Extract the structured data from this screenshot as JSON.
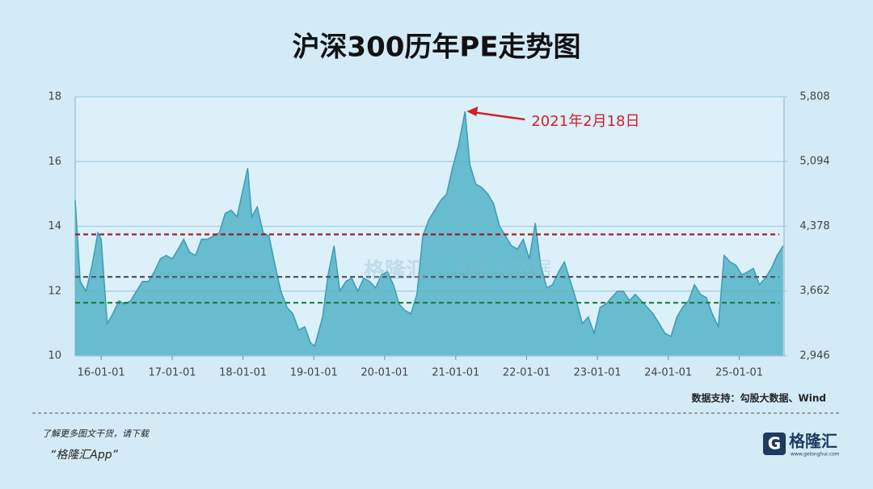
{
  "chart_data": {
    "type": "area",
    "title": "沪深300历年PE走势图",
    "x": [
      "15-08-20",
      "15-09-15",
      "15-10-15",
      "15-11-15",
      "15-12-15",
      "16-01-01",
      "16-02-01",
      "16-03-01",
      "16-04-01",
      "16-05-01",
      "16-06-01",
      "16-07-01",
      "16-08-01",
      "16-09-01",
      "16-10-01",
      "16-11-01",
      "16-12-01",
      "17-01-01",
      "17-02-01",
      "17-03-01",
      "17-04-01",
      "17-05-01",
      "17-06-01",
      "17-07-01",
      "17-08-01",
      "17-09-01",
      "17-10-01",
      "17-11-01",
      "17-12-01",
      "18-01-25",
      "18-02-15",
      "18-03-15",
      "18-04-15",
      "18-05-15",
      "18-06-15",
      "18-07-15",
      "18-08-15",
      "18-09-15",
      "18-10-15",
      "18-11-15",
      "18-12-15",
      "19-01-05",
      "19-02-15",
      "19-03-15",
      "19-04-15",
      "19-05-15",
      "19-06-15",
      "19-07-15",
      "19-08-15",
      "19-09-15",
      "19-10-15",
      "19-11-15",
      "19-12-15",
      "20-01-15",
      "20-02-15",
      "20-03-15",
      "20-04-15",
      "20-05-15",
      "20-06-15",
      "20-07-15",
      "20-08-15",
      "20-09-15",
      "20-10-15",
      "20-11-15",
      "20-12-15",
      "21-01-15",
      "21-02-18",
      "21-03-15",
      "21-04-15",
      "21-05-15",
      "21-06-15",
      "21-07-15",
      "21-08-15",
      "21-09-15",
      "21-10-15",
      "21-11-15",
      "21-12-15",
      "22-01-15",
      "22-02-15",
      "22-03-15",
      "22-04-15",
      "22-05-15",
      "22-06-15",
      "22-07-15",
      "22-08-15",
      "22-09-15",
      "22-10-15",
      "22-11-15",
      "22-12-15",
      "23-01-15",
      "23-02-15",
      "23-03-15",
      "23-04-15",
      "23-05-15",
      "23-06-15",
      "23-07-15",
      "23-08-15",
      "23-09-15",
      "23-10-15",
      "23-11-15",
      "23-12-15",
      "24-01-15",
      "24-02-15",
      "24-03-15",
      "24-04-15",
      "24-05-15",
      "24-06-15",
      "24-07-15",
      "24-08-15",
      "24-09-15",
      "24-10-15",
      "24-11-15",
      "24-12-15",
      "25-01-15",
      "25-02-15",
      "25-03-15",
      "25-04-15",
      "25-05-15",
      "25-06-15",
      "25-07-15",
      "25-08-15"
    ],
    "values": [
      14.8,
      12.3,
      12.0,
      12.8,
      13.8,
      13.6,
      11.0,
      11.3,
      11.7,
      11.6,
      11.7,
      12.0,
      12.3,
      12.3,
      12.6,
      13.0,
      13.1,
      13.0,
      13.3,
      13.6,
      13.2,
      13.1,
      13.6,
      13.6,
      13.7,
      13.8,
      14.4,
      14.5,
      14.3,
      15.8,
      14.3,
      14.6,
      13.8,
      13.7,
      12.8,
      12.0,
      11.5,
      11.3,
      10.8,
      10.9,
      10.4,
      10.3,
      11.2,
      12.5,
      13.4,
      12.0,
      12.3,
      12.4,
      12.0,
      12.4,
      12.3,
      12.1,
      12.5,
      12.6,
      12.2,
      11.6,
      11.4,
      11.3,
      11.9,
      13.7,
      14.2,
      14.5,
      14.8,
      15.0,
      15.8,
      16.5,
      17.55,
      15.9,
      15.3,
      15.2,
      15.0,
      14.7,
      14.0,
      13.7,
      13.4,
      13.3,
      13.6,
      13.0,
      14.1,
      12.8,
      12.1,
      12.2,
      12.6,
      12.9,
      12.3,
      11.7,
      11.0,
      11.2,
      10.7,
      11.5,
      11.6,
      11.8,
      12.0,
      12.0,
      11.7,
      11.9,
      11.7,
      11.5,
      11.3,
      11.0,
      10.7,
      10.6,
      11.2,
      11.5,
      11.7,
      12.2,
      11.9,
      11.8,
      11.3,
      10.9,
      13.1,
      12.9,
      12.8,
      12.5,
      12.6,
      12.7,
      12.2,
      12.4,
      12.7,
      13.1,
      13.4
    ],
    "color": "#5ab6ca",
    "xlim": [
      "15-08-20",
      "25-08-20"
    ],
    "xticks": [
      "16-01-01",
      "17-01-01",
      "18-01-01",
      "19-01-01",
      "20-01-01",
      "21-01-01",
      "22-01-01",
      "23-01-01",
      "24-01-01",
      "25-01-01"
    ],
    "ylim": [
      10,
      18
    ],
    "yticks": [
      10,
      12,
      14,
      16,
      18
    ],
    "y2lim": [
      2946,
      5808
    ],
    "y2ticks": [
      {
        "value": 2946,
        "label": "2,946"
      },
      {
        "value": 3662,
        "label": "3,662"
      },
      {
        "value": 4378,
        "label": "4,378"
      },
      {
        "value": 5094,
        "label": "5,094"
      },
      {
        "value": 5808,
        "label": "5,808"
      }
    ],
    "grid": true,
    "reference_lines": [
      {
        "value": 13.75,
        "color": "#9a1f2b"
      },
      {
        "value": 12.44,
        "color": "#4f5a62"
      },
      {
        "value": 11.64,
        "color": "#1f7a3a"
      }
    ],
    "annotation": {
      "text": "2021年2月18日",
      "x": "21-02-18",
      "color": "#d0202a"
    },
    "source": "数据支持：勾股大数据、Wind"
  },
  "watermark": {
    "brand": "格隆汇",
    "site_name": "勾股大数据",
    "site_url": "www.gogudata.com"
  },
  "footer": {
    "promo": "了解更多图文干货，请下载",
    "app": "“格隆汇App”",
    "logo": "格隆汇",
    "logo_url": "www.gelonghui.com"
  }
}
